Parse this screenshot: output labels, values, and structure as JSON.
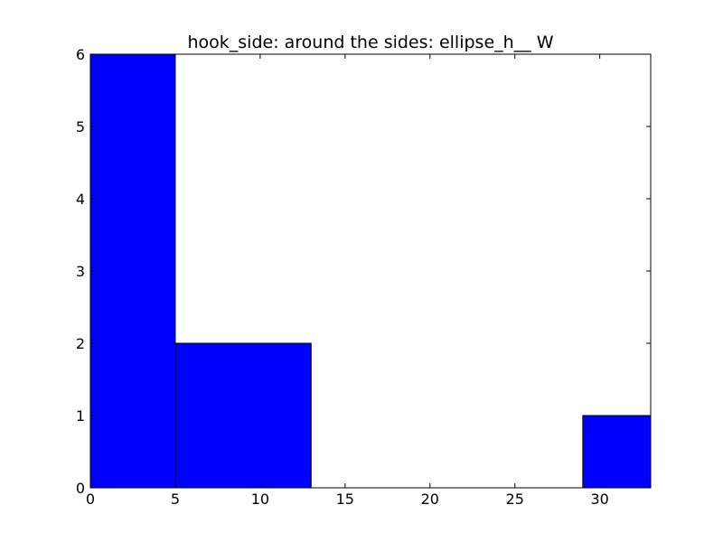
{
  "chart_data": {
    "type": "histogram",
    "title": "hook_side: around the sides: ellipse_h__ W",
    "xlabel": "",
    "ylabel": "",
    "xlim": [
      0,
      33
    ],
    "ylim": [
      0,
      6
    ],
    "xticks": [
      0,
      5,
      10,
      15,
      20,
      25,
      30
    ],
    "yticks": [
      0,
      1,
      2,
      3,
      4,
      5,
      6
    ],
    "bins": [
      {
        "x0": 0,
        "x1": 5,
        "value": 6
      },
      {
        "x0": 5,
        "x1": 13,
        "value": 2
      },
      {
        "x0": 29,
        "x1": 33,
        "value": 1
      }
    ],
    "bar_color": "#0000ff",
    "grid": false
  }
}
